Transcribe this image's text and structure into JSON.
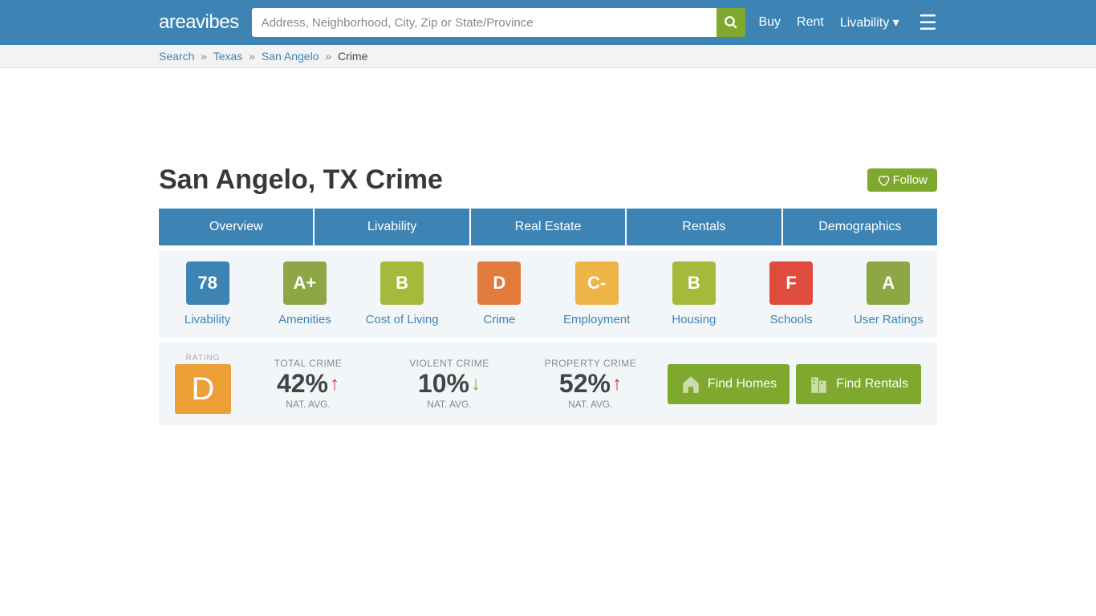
{
  "header": {
    "logo": "areavibes",
    "search_placeholder": "Address, Neighborhood, City, Zip or State/Province",
    "nav": [
      "Buy",
      "Rent",
      "Livability ▾"
    ]
  },
  "breadcrumb": [
    {
      "label": "Search",
      "link": true
    },
    {
      "label": "Texas",
      "link": true
    },
    {
      "label": "San Angelo",
      "link": true
    },
    {
      "label": "Crime",
      "link": false
    }
  ],
  "page_title": "San Angelo, TX Crime",
  "follow_label": "Follow",
  "tabs": [
    "Overview",
    "Livability",
    "Real Estate",
    "Rentals",
    "Demographics"
  ],
  "grades": [
    {
      "grade": "78",
      "label": "Livability",
      "color": "#3d84b5"
    },
    {
      "grade": "A+",
      "label": "Amenities",
      "color": "#8da744"
    },
    {
      "grade": "B",
      "label": "Cost of Living",
      "color": "#a7b93b"
    },
    {
      "grade": "D",
      "label": "Crime",
      "color": "#e37b3c"
    },
    {
      "grade": "C-",
      "label": "Employment",
      "color": "#edb547"
    },
    {
      "grade": "B",
      "label": "Housing",
      "color": "#a7b93b"
    },
    {
      "grade": "F",
      "label": "Schools",
      "color": "#df4b3d"
    },
    {
      "grade": "A",
      "label": "User Ratings",
      "color": "#8da744"
    }
  ],
  "rating": {
    "caption": "RATING",
    "grade": "D",
    "color": "#ec9e37"
  },
  "stats": [
    {
      "caption": "TOTAL CRIME",
      "value": "42%",
      "dir": "up",
      "sub": "NAT. AVG."
    },
    {
      "caption": "VIOLENT CRIME",
      "value": "10%",
      "dir": "down",
      "sub": "NAT. AVG."
    },
    {
      "caption": "PROPERTY CRIME",
      "value": "52%",
      "dir": "up",
      "sub": "NAT. AVG."
    }
  ],
  "cta": {
    "homes": "Find Homes",
    "rentals": "Find Rentals"
  },
  "colors": {
    "header_bg": "#3d84b5",
    "accent_green": "#7fa82e",
    "panel_bg": "#f3f6f8"
  }
}
